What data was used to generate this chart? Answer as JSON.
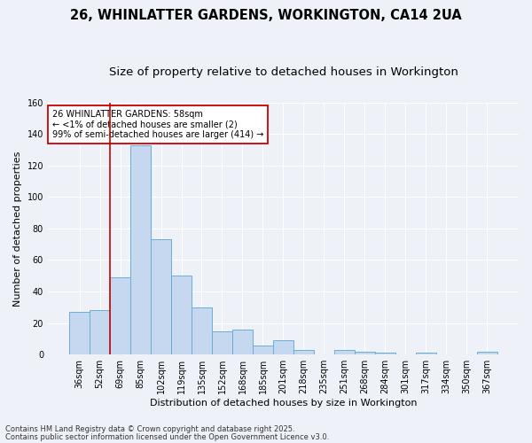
{
  "title1": "26, WHINLATTER GARDENS, WORKINGTON, CA14 2UA",
  "title2": "Size of property relative to detached houses in Workington",
  "xlabel": "Distribution of detached houses by size in Workington",
  "ylabel": "Number of detached properties",
  "categories": [
    "36sqm",
    "52sqm",
    "69sqm",
    "85sqm",
    "102sqm",
    "119sqm",
    "135sqm",
    "152sqm",
    "168sqm",
    "185sqm",
    "201sqm",
    "218sqm",
    "235sqm",
    "251sqm",
    "268sqm",
    "284sqm",
    "301sqm",
    "317sqm",
    "334sqm",
    "350sqm",
    "367sqm"
  ],
  "values": [
    27,
    28,
    49,
    133,
    73,
    50,
    30,
    15,
    16,
    6,
    9,
    3,
    0,
    3,
    2,
    1,
    0,
    1,
    0,
    0,
    2
  ],
  "bar_color": "#c5d8ef",
  "bar_edge_color": "#6baed6",
  "vline_x": 1.5,
  "vline_color": "#cc0000",
  "ylim": [
    0,
    160
  ],
  "yticks": [
    0,
    20,
    40,
    60,
    80,
    100,
    120,
    140,
    160
  ],
  "annotation_text": "26 WHINLATTER GARDENS: 58sqm\n← <1% of detached houses are smaller (2)\n99% of semi-detached houses are larger (414) →",
  "annotation_box_color": "#ffffff",
  "annotation_box_edge": "#cc0000",
  "footer1": "Contains HM Land Registry data © Crown copyright and database right 2025.",
  "footer2": "Contains public sector information licensed under the Open Government Licence v3.0.",
  "bg_color": "#eef2f8",
  "grid_color": "#ffffff",
  "title_fontsize": 10.5,
  "subtitle_fontsize": 9.5,
  "axis_label_fontsize": 8,
  "tick_fontsize": 7,
  "annotation_fontsize": 7,
  "footer_fontsize": 6
}
